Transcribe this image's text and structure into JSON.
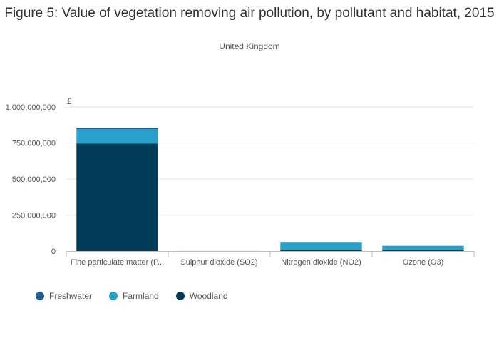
{
  "chart_data": {
    "type": "bar",
    "stacked": true,
    "title": "Figure 5: Value of vegetation removing air pollution, by pollutant and habitat, 2015",
    "subtitle": "United Kingdom",
    "ylabel": "£",
    "xlabel": "",
    "ylim": [
      0,
      1000000000
    ],
    "yticks": [
      0,
      250000000,
      500000000,
      750000000,
      1000000000
    ],
    "ytick_labels": [
      "0",
      "250,000,000",
      "500,000,000",
      "750,000,000",
      "1,000,000,000"
    ],
    "categories": [
      "Fine particulate matter (P...",
      "Sulphur dioxide (SO2)",
      "Nitrogen dioxide (NO2)",
      "Ozone (O3)"
    ],
    "series": [
      {
        "name": "Woodland",
        "color": "#003c57",
        "values": [
          745000000,
          0,
          8000000,
          6000000
        ]
      },
      {
        "name": "Farmland",
        "color": "#27a0cc",
        "values": [
          100000000,
          500000,
          50000000,
          30000000
        ]
      },
      {
        "name": "Freshwater",
        "color": "#206095",
        "values": [
          10000000,
          0,
          500000,
          500000
        ]
      }
    ],
    "legend_order": [
      "Freshwater",
      "Farmland",
      "Woodland"
    ],
    "legend_position": "bottom-left",
    "grid": true
  }
}
